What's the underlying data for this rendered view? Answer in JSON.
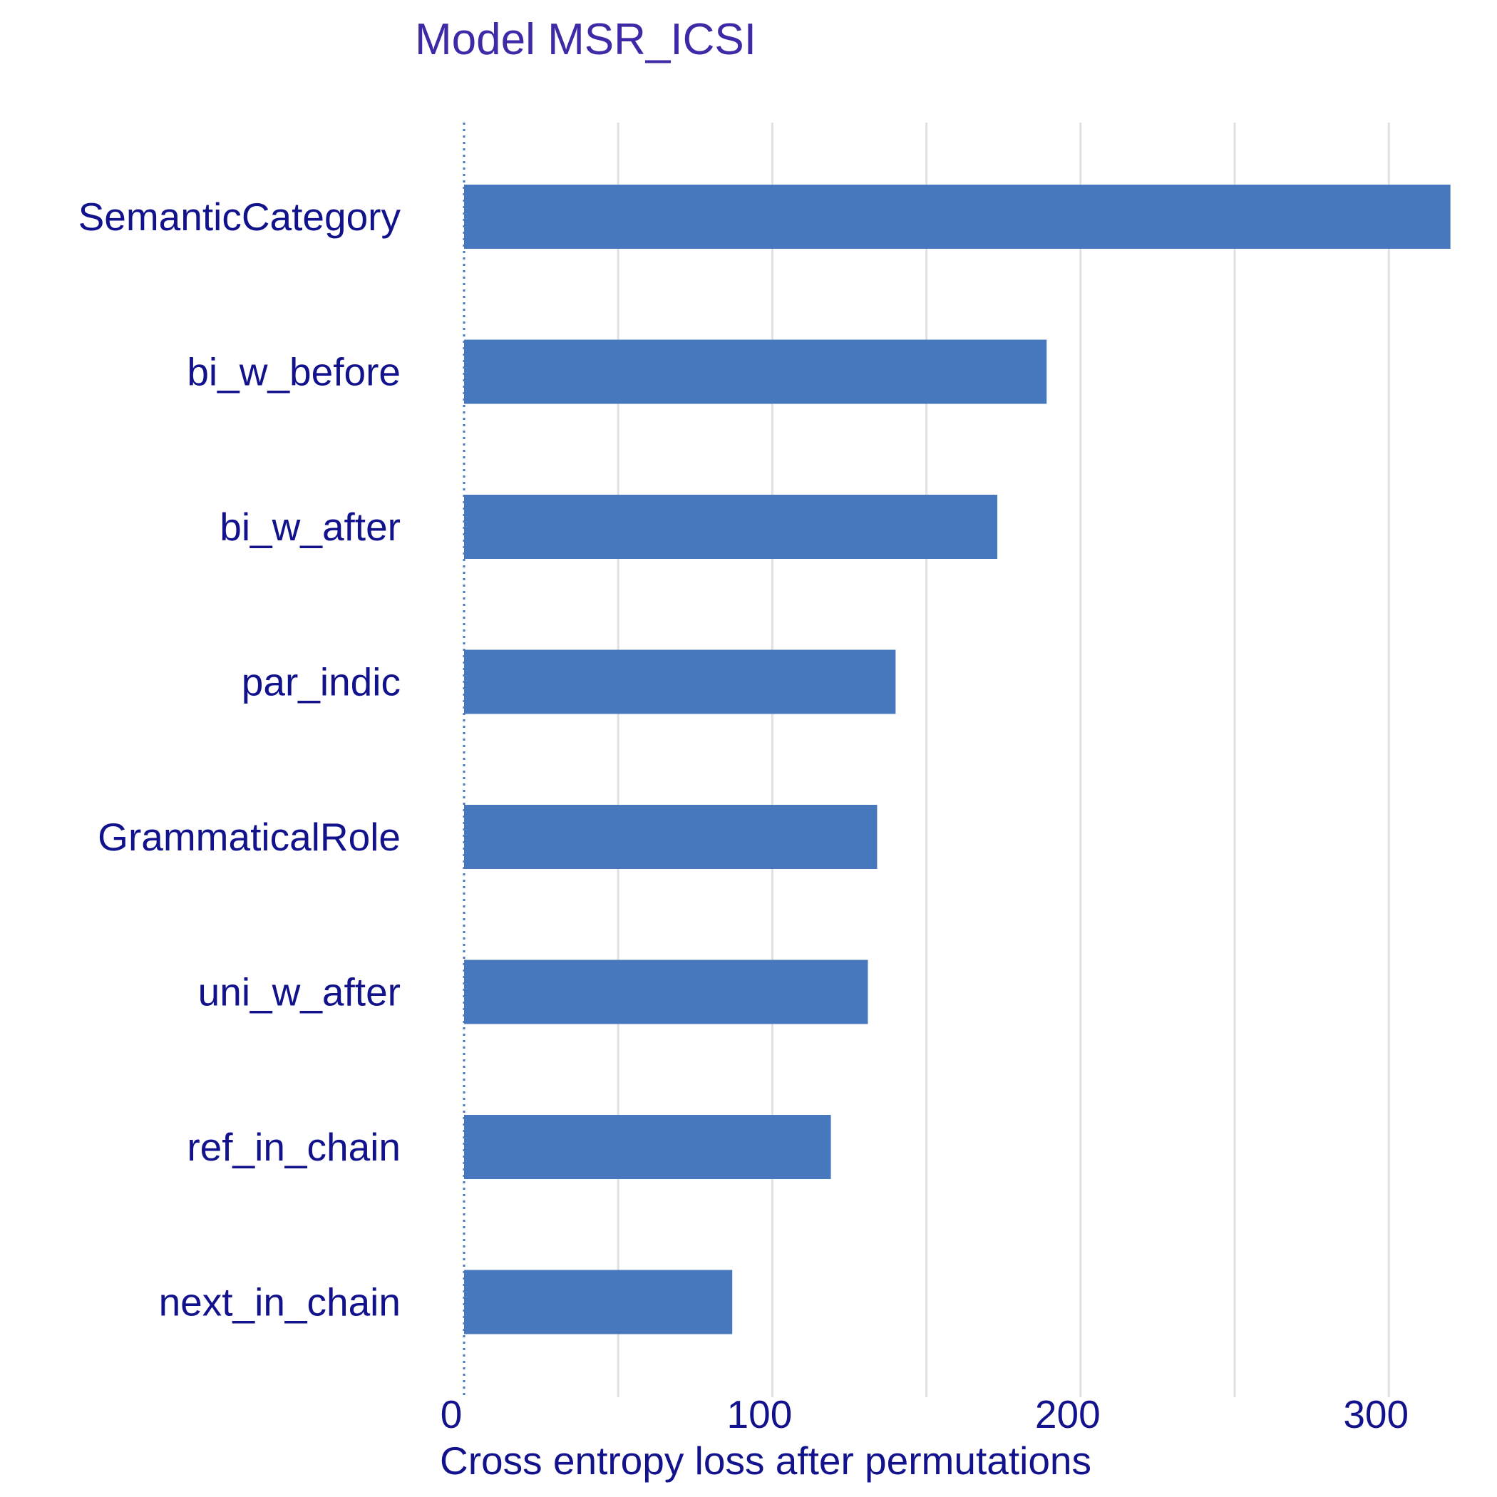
{
  "chart_data": {
    "type": "bar",
    "orientation": "horizontal",
    "title": "Model MSR_ICSI",
    "xlabel": "Cross entropy loss after permutations",
    "ylabel": "",
    "categories": [
      "SemanticCategory",
      "bi_w_before",
      "bi_w_after",
      "par_indic",
      "GrammaticalRole",
      "uni_w_after",
      "ref_in_chain",
      "next_in_chain"
    ],
    "values": [
      320,
      189,
      173,
      140,
      134,
      131,
      119,
      87
    ],
    "baseline": 0,
    "xlim": [
      -5,
      325
    ],
    "xticks": [
      0,
      100,
      200,
      300
    ],
    "xtick_labels": [
      "0",
      "100",
      "200",
      "300"
    ],
    "grid": {
      "vertical_major": true,
      "vertical_minor": true,
      "horizontal": false
    },
    "legend": "none"
  },
  "colors": {
    "bar": "#4778BE",
    "baseline_line": "#4778BE",
    "grid": "#E1E1E1",
    "text": "#12128C",
    "title": "#3F29A6",
    "background": "#FFFFFF"
  }
}
